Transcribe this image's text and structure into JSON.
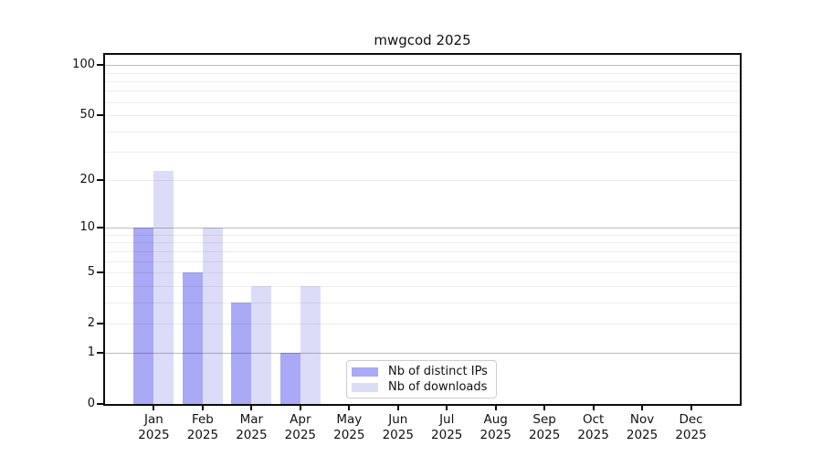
{
  "title": "mwgcod 2025",
  "chart_data": {
    "type": "bar",
    "title": "mwgcod 2025",
    "yscale": "log1p",
    "ylim": [
      0,
      115
    ],
    "grid": true,
    "legend_position": "lower center",
    "categories": [
      "Jan",
      "Feb",
      "Mar",
      "Apr",
      "May",
      "Jun",
      "Jul",
      "Aug",
      "Sep",
      "Oct",
      "Nov",
      "Dec"
    ],
    "category_year": "2025",
    "series": [
      {
        "name": "Nb of distinct IPs",
        "color": "#a9a9f5",
        "values": [
          10,
          5,
          3,
          1,
          0,
          0,
          0,
          0,
          0,
          0,
          0,
          0
        ]
      },
      {
        "name": "Nb of downloads",
        "color": "#dcdcf9",
        "values": [
          23,
          10,
          4,
          4,
          0,
          0,
          0,
          0,
          0,
          0,
          0,
          0
        ]
      }
    ],
    "ytick_values": [
      0,
      1,
      2,
      5,
      10,
      20,
      50,
      100
    ],
    "ytick_labels": [
      "0",
      "1",
      "2",
      "5",
      "10",
      "20",
      "50",
      "100"
    ],
    "minor_grid_values": [
      2,
      3,
      4,
      5,
      6,
      7,
      8,
      9,
      20,
      30,
      40,
      50,
      60,
      70,
      80,
      90
    ],
    "major_grid_values": [
      1,
      10,
      100
    ]
  },
  "colors": {
    "bar_distinct_ips": "#a9a9f5",
    "bar_downloads": "#dcdcf9",
    "axis": "#0c0c0c",
    "legend_border": "#cccccc",
    "major_grid": "rgba(0,0,0,0.26)",
    "minor_grid": "rgba(0,0,0,0.07)"
  }
}
